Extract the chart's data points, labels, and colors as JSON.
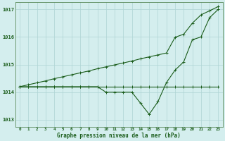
{
  "hours": [
    0,
    1,
    2,
    3,
    4,
    5,
    6,
    7,
    8,
    9,
    10,
    11,
    12,
    13,
    14,
    15,
    16,
    17,
    18,
    19,
    20,
    21,
    22,
    23
  ],
  "line_rising": [
    1014.2,
    1014.27,
    1014.34,
    1014.41,
    1014.49,
    1014.56,
    1014.63,
    1014.7,
    1014.77,
    1014.85,
    1014.92,
    1014.99,
    1015.06,
    1015.13,
    1015.21,
    1015.28,
    1015.35,
    1015.42,
    1015.99,
    1016.1,
    1016.5,
    1016.8,
    1016.95,
    1017.1
  ],
  "line_flat": [
    1014.2,
    1014.2,
    1014.2,
    1014.2,
    1014.2,
    1014.2,
    1014.2,
    1014.2,
    1014.2,
    1014.2,
    1014.2,
    1014.2,
    1014.2,
    1014.2,
    1014.2,
    1014.2,
    1014.2,
    1014.2,
    1014.2,
    1014.2,
    1014.2,
    1014.2,
    1014.2,
    1014.2
  ],
  "line_dip": [
    1014.2,
    1014.2,
    1014.2,
    1014.2,
    1014.2,
    1014.2,
    1014.2,
    1014.2,
    1014.2,
    1014.2,
    1014.0,
    1014.0,
    1014.0,
    1014.0,
    1013.6,
    1013.2,
    1013.65,
    1014.35,
    1014.8,
    1015.1,
    1015.9,
    1016.0,
    1016.7,
    1017.0
  ],
  "line_color": "#1a5c1a",
  "bg_color": "#d4eeee",
  "grid_color": "#aed4d4",
  "axis_label_color": "#1a5c1a",
  "ylim": [
    1012.75,
    1017.25
  ],
  "yticks": [
    1013,
    1014,
    1015,
    1016,
    1017
  ],
  "ytick_labels": [
    "1013",
    "1014",
    "1015",
    "1016",
    "1017"
  ],
  "xtick_labels": [
    "0",
    "1",
    "2",
    "3",
    "4",
    "5",
    "6",
    "7",
    "8",
    "9",
    "10",
    "11",
    "12",
    "13",
    "14",
    "15",
    "16",
    "17",
    "18",
    "19",
    "20",
    "21",
    "22",
    "23"
  ],
  "xlabel": "Graphe pression niveau de la mer (hPa)"
}
